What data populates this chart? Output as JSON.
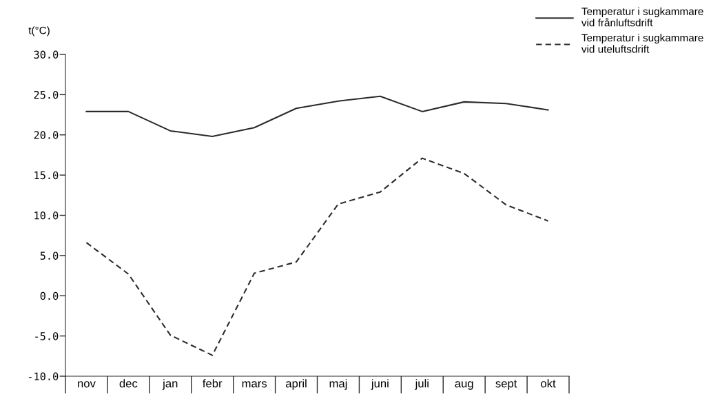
{
  "chart_data": {
    "type": "line",
    "ylabel": "t(°C)",
    "categories": [
      "nov",
      "dec",
      "jan",
      "febr",
      "mars",
      "april",
      "maj",
      "juni",
      "juli",
      "aug",
      "sept",
      "okt"
    ],
    "series": [
      {
        "name": "Temperatur i sugkammare\nvid frånluftsdrift",
        "color": "#2b2b2b",
        "line_style": "solid",
        "values": [
          22.9,
          22.9,
          20.5,
          19.8,
          20.9,
          23.3,
          24.2,
          24.8,
          22.9,
          24.1,
          23.9,
          23.1
        ]
      },
      {
        "name": "Temperatur i sugkammare\nvid uteluftsdrift",
        "color": "#2b2b2b",
        "line_style": "dashed",
        "values": [
          6.6,
          2.7,
          -4.9,
          -7.4,
          2.8,
          4.2,
          11.4,
          12.9,
          17.1,
          15.2,
          11.3,
          9.3
        ]
      }
    ],
    "ylim": [
      -10,
      30
    ],
    "yticks": [
      {
        "value": -10,
        "label": "-10.0"
      },
      {
        "value": -5,
        "label": "-5.0"
      },
      {
        "value": 0,
        "label": "0.0"
      },
      {
        "value": 5,
        "label": "5.0"
      },
      {
        "value": 10,
        "label": "10.0"
      },
      {
        "value": 15,
        "label": "15.0"
      },
      {
        "value": 20,
        "label": "20.0"
      },
      {
        "value": 25,
        "label": "25.0"
      },
      {
        "value": 30,
        "label": "30.0"
      }
    ],
    "legend": "top right"
  }
}
